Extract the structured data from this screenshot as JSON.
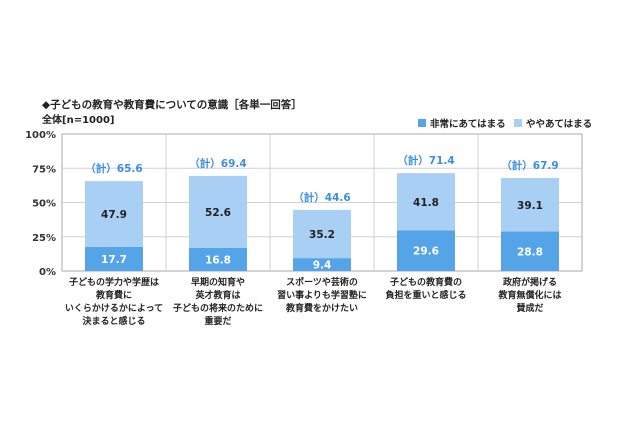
{
  "title": "◆子どもの教育や教育費についての意識［各単一回答］",
  "subtitle": "全体[n=1000]",
  "legend": {
    "series1": "非常にあてはまる",
    "series2": "ややあてはまる"
  },
  "colors": {
    "series1": "#55a4e8",
    "series2": "#a9cff5",
    "series1_text": "#ffffff",
    "series2_text": "#222222",
    "total_text": "#3b8fe0",
    "grid": "#d0d0d0",
    "frame": "#aaaaaa"
  },
  "chart_data": {
    "type": "bar",
    "stacked": true,
    "categories": [
      [
        "子どもの学力や学歴は",
        "教育費に",
        "いくらかけるかによって",
        "決まると感じる"
      ],
      [
        "早期の知育や",
        "英才教育は",
        "子どもの将来のために",
        "重要だ"
      ],
      [
        "スポーツや芸術の",
        "習い事よりも学習塾に",
        "教育費をかけたい"
      ],
      [
        "子どもの教育費の",
        "負担を重いと感じる"
      ],
      [
        "政府が掲げる",
        "教育無償化には",
        "賛成だ"
      ]
    ],
    "series": [
      {
        "name": "非常にあてはまる",
        "values": [
          17.7,
          16.8,
          9.4,
          29.6,
          28.8
        ]
      },
      {
        "name": "ややあてはまる",
        "values": [
          47.9,
          52.6,
          35.2,
          41.8,
          39.1
        ]
      }
    ],
    "totals": [
      "（計）65.6",
      "（計）69.4",
      "（計）44.6",
      "（計）71.4",
      "（計）67.9"
    ],
    "yticks": [
      "0%",
      "25%",
      "50%",
      "75%",
      "100%"
    ],
    "ylim": [
      0,
      100
    ],
    "grid": true,
    "legend_position": "top-right"
  }
}
